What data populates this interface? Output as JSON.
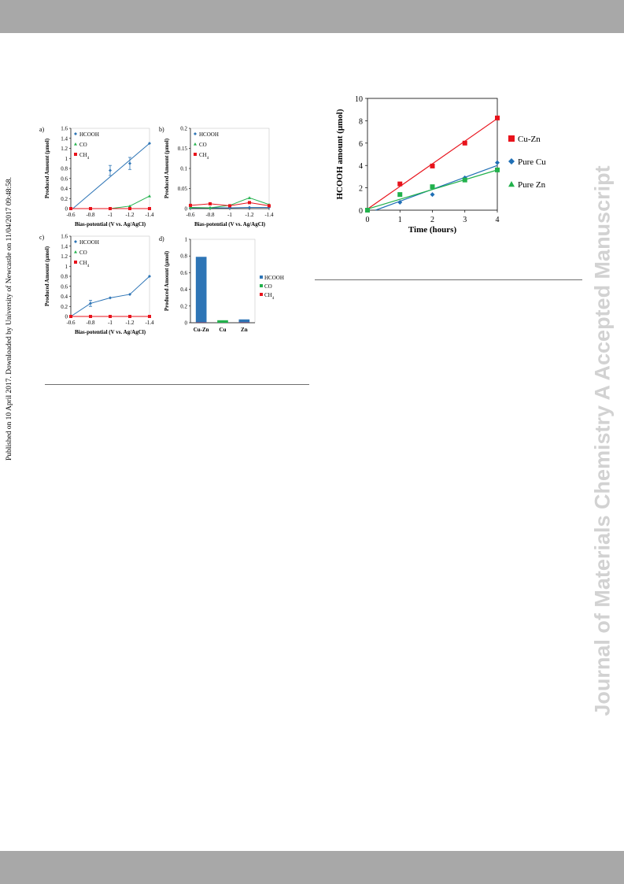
{
  "page": {
    "left_margin_note": "Published on 10 April 2017. Downloaded by University of Newcastle on 11/04/2017 09:48:58.",
    "right_watermark": "Journal of Materials Chemistry A Accepted Manuscript"
  },
  "colors": {
    "hcooh": "#2e75b6",
    "co": "#22b14c",
    "ch4": "#e8121b",
    "cuzn": "#e8121b",
    "purecu": "#1f6fb5",
    "purezn": "#22b14c",
    "axis": "#000000",
    "band": "#a8a8a8"
  },
  "chart_data": [
    {
      "id": "a",
      "panel_label": "a)",
      "type": "scatter",
      "xlabel": "Bias-potential (V vs. Ag/AgCl)",
      "ylabel": "Produced Amount (μmol)",
      "x_ticks": [
        "-0.6",
        "-0.8",
        "-1",
        "-1.2",
        "-1.4"
      ],
      "y_ticks": [
        "0",
        "0.2",
        "0.4",
        "0.6",
        "0.8",
        "1",
        "1.2",
        "1.4",
        "1.6"
      ],
      "xlim": [
        -0.6,
        -1.4
      ],
      "ylim": [
        0,
        1.6
      ],
      "series": [
        {
          "name": "HCOOH",
          "x": [
            -0.6,
            -0.8,
            -1.0,
            -1.2,
            -1.4
          ],
          "y": [
            0,
            0,
            0.76,
            0.9,
            1.3
          ],
          "err": [
            0,
            0,
            0.1,
            0.12,
            0
          ],
          "fit": [
            [
              -0.62,
              0
            ],
            [
              -1.4,
              1.3
            ]
          ]
        },
        {
          "name": "CO",
          "x": [
            -0.6,
            -0.8,
            -1.0,
            -1.2,
            -1.4
          ],
          "y": [
            0,
            0,
            0,
            0.05,
            0.25
          ]
        },
        {
          "name": "CH4",
          "legend_text": "CH4",
          "x": [
            -0.6,
            -0.8,
            -1.0,
            -1.2,
            -1.4
          ],
          "y": [
            0,
            0,
            0,
            0,
            0
          ]
        }
      ]
    },
    {
      "id": "b",
      "panel_label": "b)",
      "type": "scatter",
      "xlabel": "Bias-potential (V vs. Ag/AgCl)",
      "ylabel": "Produced Amount (μmol)",
      "x_ticks": [
        "-0.6",
        "-0.8",
        "-1",
        "-1.2",
        "-1.4"
      ],
      "y_ticks": [
        "0",
        "0.05",
        "0.1",
        "0.15",
        "0.2"
      ],
      "xlim": [
        -0.6,
        -1.4
      ],
      "ylim": [
        0,
        0.2
      ],
      "series": [
        {
          "name": "HCOOH",
          "x": [
            -0.6,
            -0.8,
            -1.0,
            -1.2,
            -1.4
          ],
          "y": [
            0.002,
            0.002,
            0.002,
            0.003,
            0.003
          ]
        },
        {
          "name": "CO",
          "x": [
            -0.6,
            -0.8,
            -1.0,
            -1.2,
            -1.4
          ],
          "y": [
            0.003,
            0.002,
            0.008,
            0.027,
            0.01
          ]
        },
        {
          "name": "CH4",
          "legend_text": "CH4",
          "x": [
            -0.6,
            -0.8,
            -1.0,
            -1.2,
            -1.4
          ],
          "y": [
            0.008,
            0.012,
            0.007,
            0.015,
            0.007
          ]
        }
      ]
    },
    {
      "id": "c",
      "panel_label": "c)",
      "type": "scatter",
      "xlabel": "Bias-potential (V vs. Ag/AgCl)",
      "ylabel": "Produced Amount (μmol)",
      "x_ticks": [
        "-0.6",
        "-0.8",
        "-1",
        "-1.2",
        "-1.4"
      ],
      "y_ticks": [
        "0",
        "0.2",
        "0.4",
        "0.6",
        "0.8",
        "1",
        "1.2",
        "1.4",
        "1.6"
      ],
      "xlim": [
        -0.6,
        -1.4
      ],
      "ylim": [
        0,
        1.6
      ],
      "series": [
        {
          "name": "HCOOH",
          "x": [
            -0.6,
            -0.8,
            -1.0,
            -1.2,
            -1.4
          ],
          "y": [
            0,
            0.26,
            0.37,
            0.44,
            0.8
          ],
          "err": [
            0,
            0.06,
            0,
            0,
            0
          ]
        },
        {
          "name": "CO",
          "x": [
            -0.6,
            -0.8,
            -1.0,
            -1.2,
            -1.4
          ],
          "y": [
            0,
            0,
            0,
            0,
            0
          ]
        },
        {
          "name": "CH4",
          "legend_text": "CH4",
          "x": [
            -0.6,
            -0.8,
            -1.0,
            -1.2,
            -1.4
          ],
          "y": [
            0,
            0,
            0,
            0,
            0
          ]
        }
      ]
    },
    {
      "id": "d",
      "panel_label": "d)",
      "type": "bar",
      "ylabel": "Produced Amount (μmol)",
      "categories": [
        "Cu-Zn",
        "Cu",
        "Zn"
      ],
      "y_ticks": [
        "0",
        "0.2",
        "0.4",
        "0.6",
        "0.8",
        "1"
      ],
      "ylim": [
        0,
        1
      ],
      "series": [
        {
          "name": "HCOOH",
          "values": [
            0.79,
            0,
            0.04
          ]
        },
        {
          "name": "CO",
          "values": [
            0,
            0.03,
            0
          ]
        },
        {
          "name": "CH4",
          "legend_text": "CH4",
          "values": [
            0.003,
            0,
            0.003
          ]
        }
      ]
    },
    {
      "id": "time",
      "type": "line",
      "xlabel": "Time (hours)",
      "ylabel": "HCOOH amount (μmol)",
      "x_ticks": [
        "0",
        "1",
        "2",
        "3",
        "4"
      ],
      "y_ticks": [
        "0",
        "2",
        "4",
        "6",
        "8",
        "10"
      ],
      "xlim": [
        0,
        4
      ],
      "ylim": [
        0,
        10
      ],
      "series": [
        {
          "name": "Cu-Zn",
          "x": [
            0,
            1,
            2,
            3,
            4
          ],
          "y": [
            0,
            2.35,
            3.95,
            6.0,
            8.25
          ],
          "fit": [
            [
              0,
              0.1
            ],
            [
              4,
              8.2
            ]
          ]
        },
        {
          "name": "Pure Cu",
          "x": [
            0,
            1,
            2,
            3,
            4
          ],
          "y": [
            0,
            0.7,
            1.4,
            2.9,
            4.25
          ],
          "fit": [
            [
              0.25,
              0
            ],
            [
              4,
              4.0
            ]
          ]
        },
        {
          "name": "Pure Zn",
          "x": [
            0,
            1,
            2,
            3,
            4
          ],
          "y": [
            0,
            1.4,
            2.1,
            2.7,
            3.6
          ],
          "fit": [
            [
              0,
              0.1
            ],
            [
              4,
              3.6
            ]
          ]
        }
      ]
    }
  ]
}
